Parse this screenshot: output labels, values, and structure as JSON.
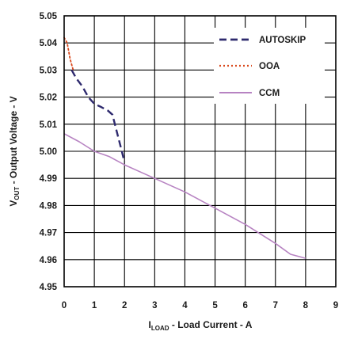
{
  "chart_data": {
    "type": "line",
    "title": "",
    "xlabel": {
      "main": "I",
      "sub": "LOAD",
      "rest": " - Load Current - A"
    },
    "ylabel": {
      "main": "V",
      "sub": "OUT",
      "rest": " - Output Voltage - V"
    },
    "xlim": [
      0,
      9
    ],
    "ylim": [
      4.95,
      5.05
    ],
    "x_ticks": [
      0,
      1,
      2,
      3,
      4,
      5,
      6,
      7,
      8,
      9
    ],
    "x_tick_labels": [
      "0",
      "1",
      "2",
      "3",
      "4",
      "5",
      "6",
      "7",
      "8",
      "9"
    ],
    "y_ticks": [
      4.95,
      4.96,
      4.97,
      4.98,
      4.99,
      5.0,
      5.01,
      5.02,
      5.03,
      5.04,
      5.05
    ],
    "y_tick_labels": [
      "4.95",
      "4.96",
      "4.97",
      "4.98",
      "4.99",
      "5.00",
      "5.01",
      "5.02",
      "5.03",
      "5.04",
      "5.05"
    ],
    "grid": true,
    "legend_position": "top-right",
    "series": [
      {
        "name": "AUTOSKIP",
        "style": "dashed",
        "color": "#2e2a6e",
        "x": [
          0.25,
          0.4,
          0.6,
          0.8,
          1.0,
          1.2,
          1.45,
          1.6,
          1.75,
          1.9,
          2.0
        ],
        "y": [
          5.03,
          5.027,
          5.024,
          5.02,
          5.0175,
          5.0165,
          5.015,
          5.0135,
          5.007,
          5.0005,
          4.996
        ]
      },
      {
        "name": "OOA",
        "style": "dotted",
        "color": "#d9471b",
        "x": [
          0.0,
          0.1,
          0.2,
          0.3
        ],
        "y": [
          5.042,
          5.04,
          5.034,
          5.03
        ]
      },
      {
        "name": "CCM",
        "style": "solid",
        "color": "#b783c2",
        "x": [
          0.0,
          0.5,
          1.0,
          1.5,
          2.0,
          2.5,
          3.0,
          3.5,
          4.0,
          4.5,
          5.0,
          5.5,
          6.0,
          6.5,
          7.0,
          7.5,
          8.0
        ],
        "y": [
          5.0065,
          5.0035,
          5.0,
          4.998,
          4.995,
          4.9925,
          4.99,
          4.9875,
          4.985,
          4.982,
          4.979,
          4.976,
          4.973,
          4.9695,
          4.966,
          4.962,
          4.9605
        ]
      }
    ]
  }
}
